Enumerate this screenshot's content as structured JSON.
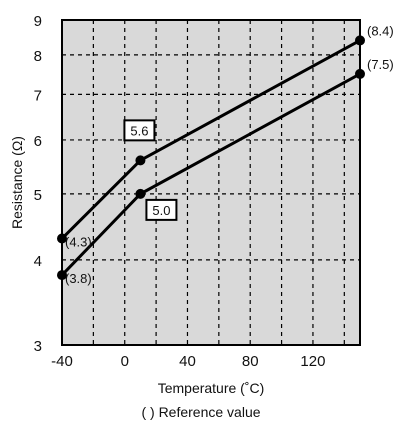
{
  "chart_data": {
    "type": "line",
    "xlabel": "Temperature (˚C)",
    "ylabel": "Resistance (Ω)",
    "xlim": [
      -40,
      150
    ],
    "ylim": [
      3,
      9
    ],
    "y_scale": "log",
    "x_ticks": [
      -40,
      0,
      40,
      80,
      120
    ],
    "y_ticks": [
      3,
      4,
      5,
      6,
      7,
      8,
      9
    ],
    "grid": true,
    "grid_style": "dashed",
    "plot_background": "#d9d9d9",
    "line_color": "#000000",
    "series": [
      {
        "x": [
          -40,
          10,
          150
        ],
        "y": [
          4.3,
          5.6,
          8.4
        ],
        "point_labels": [
          "(4.3)",
          "5.6",
          "(8.4)"
        ],
        "boxed_labels": [
          false,
          true,
          false
        ]
      },
      {
        "x": [
          -40,
          10,
          150
        ],
        "y": [
          3.8,
          5.0,
          7.5
        ],
        "point_labels": [
          "(3.8)",
          "5.0",
          "(7.5)"
        ],
        "boxed_labels": [
          false,
          true,
          false
        ]
      }
    ],
    "note": "( ) Reference value"
  }
}
